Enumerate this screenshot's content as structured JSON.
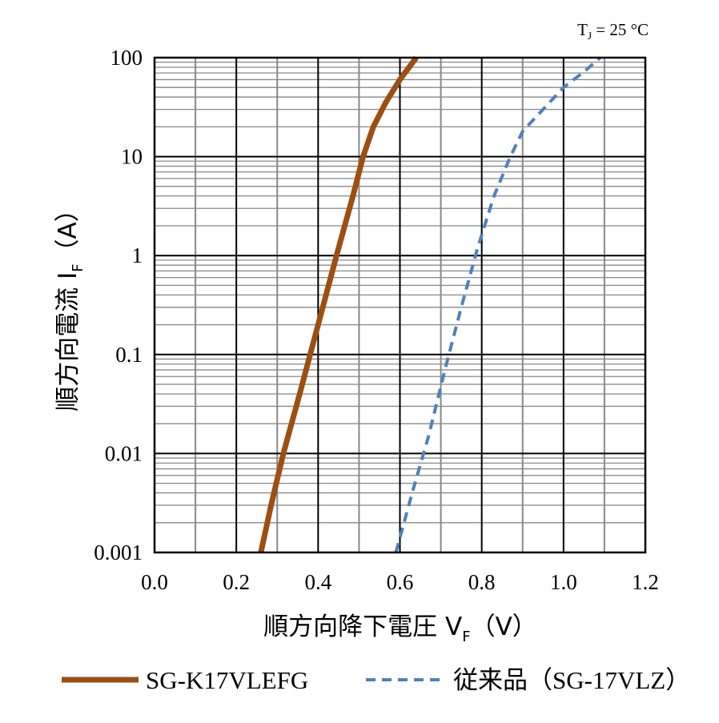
{
  "chart_data": {
    "type": "line",
    "annotation": {
      "main": "T",
      "sub": "J",
      "rest": " = 25 °C"
    },
    "xlabel": {
      "main": "順方向降下電圧 V",
      "sub": "F",
      "rest": "（V）"
    },
    "ylabel": {
      "main": "順方向電流 I",
      "sub": "F",
      "rest": "（A）"
    },
    "xlim": [
      0,
      1.2
    ],
    "ylim": [
      0.001,
      100
    ],
    "yscale": "log",
    "x_ticks": [
      "0.0",
      "0.2",
      "0.4",
      "0.6",
      "0.8",
      "1.0",
      "1.2"
    ],
    "y_ticks": [
      "0.001",
      "0.01",
      "0.1",
      "1",
      "10",
      "100"
    ],
    "grid": true,
    "legend_position": "bottom",
    "series": [
      {
        "name": "SG-K17VLEFG",
        "style": "solid",
        "color": "#9c4f12",
        "points": [
          [
            0.26,
            0.001
          ],
          [
            0.285,
            0.003
          ],
          [
            0.315,
            0.01
          ],
          [
            0.355,
            0.04
          ],
          [
            0.4,
            0.2
          ],
          [
            0.445,
            1.0
          ],
          [
            0.485,
            4.0
          ],
          [
            0.51,
            10
          ],
          [
            0.535,
            20
          ],
          [
            0.565,
            35
          ],
          [
            0.6,
            60
          ],
          [
            0.64,
            100
          ]
        ]
      },
      {
        "name": "従来品（SG-17VLZ）",
        "style": "dashed",
        "color": "#4f81bd",
        "points": [
          [
            0.59,
            0.001
          ],
          [
            0.63,
            0.004
          ],
          [
            0.67,
            0.015
          ],
          [
            0.71,
            0.07
          ],
          [
            0.75,
            0.3
          ],
          [
            0.79,
            1.2
          ],
          [
            0.83,
            4.0
          ],
          [
            0.87,
            10
          ],
          [
            0.9,
            18
          ],
          [
            0.95,
            30
          ],
          [
            1.0,
            50
          ],
          [
            1.05,
            72
          ],
          [
            1.09,
            100
          ]
        ]
      }
    ]
  }
}
